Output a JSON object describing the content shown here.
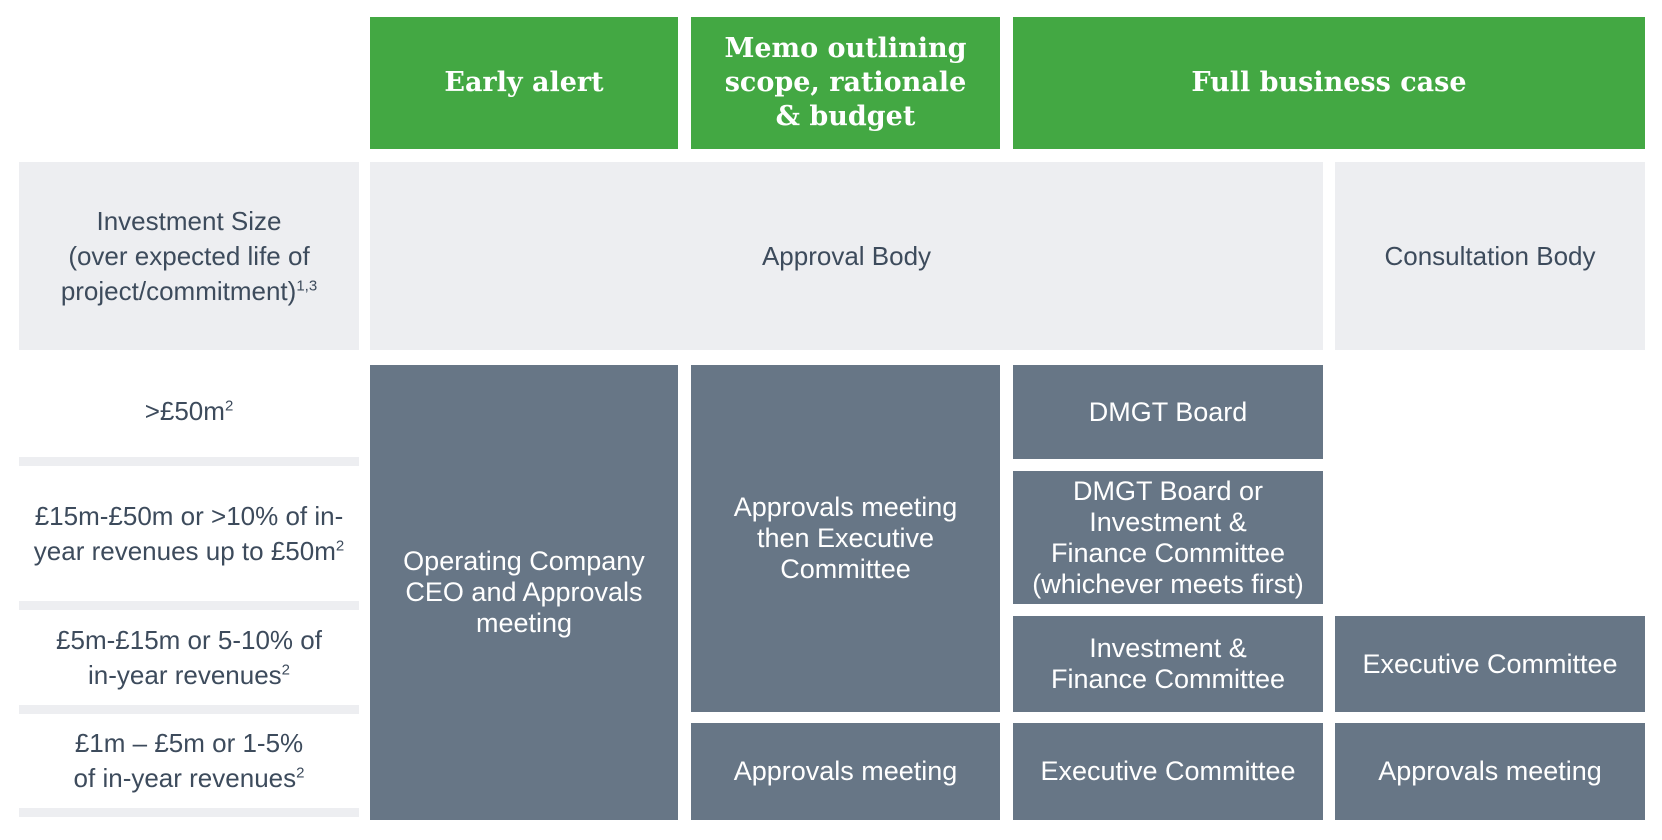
{
  "headers": {
    "early_alert": "Early alert",
    "memo": "Memo outlining\nscope, rationale\n& budget",
    "full_case": "Full business case"
  },
  "subheaders": {
    "investment_size": "Investment Size\n(over expected life of\nproject/commitment)",
    "investment_size_sup": "1,3",
    "approval_body": "Approval Body",
    "consultation_body": "Consultation Body"
  },
  "rows": [
    {
      "label": ">£50m",
      "sup": "2"
    },
    {
      "label": "£15m-£50m or >10% of in-\nyear revenues up to £50m",
      "sup": "2"
    },
    {
      "label": "£5m-£15m or 5-10% of\nin-year revenues",
      "sup": "2"
    },
    {
      "label": "£1m – £5m or 1-5%\nof in-year revenues",
      "sup": "2"
    }
  ],
  "cells": {
    "early_alert_all": "Operating Company\nCEO and Approvals\nmeeting",
    "memo_top": "Approvals meeting\nthen Executive\nCommittee",
    "memo_bottom": "Approvals meeting",
    "full_row1": "DMGT Board",
    "full_row2": "DMGT Board or\nInvestment &\nFinance Committee\n(whichever meets first)",
    "full_row3": "Investment &\nFinance Committee",
    "full_row4": "Executive Committee",
    "consult_row3": "Executive Committee",
    "consult_row4": "Approvals meeting"
  },
  "colors": {
    "header_green": "#43a843",
    "light_panel": "#edeef1",
    "slate_panel": "#677686",
    "label_text": "#3d4b5c"
  }
}
